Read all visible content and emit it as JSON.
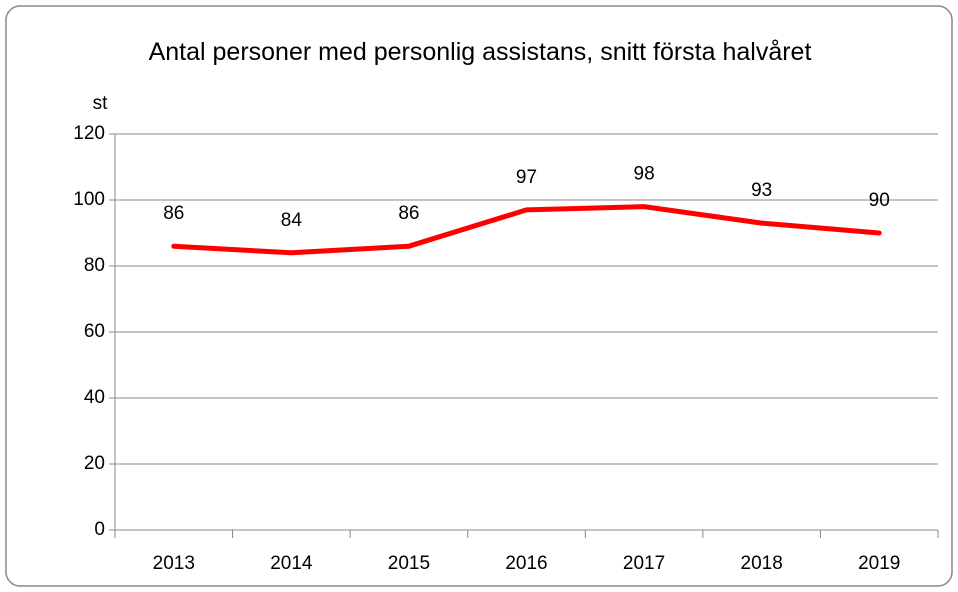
{
  "chart_data": {
    "type": "line",
    "title": "Antal personer med personlig assistans, snitt första halvåret",
    "y_label": "st",
    "categories": [
      "2013",
      "2014",
      "2015",
      "2016",
      "2017",
      "2018",
      "2019"
    ],
    "series": [
      {
        "name": "Antal personer",
        "color": "#ff0000",
        "values": [
          86,
          84,
          86,
          97,
          98,
          93,
          90
        ]
      }
    ],
    "ylim": [
      0,
      120
    ],
    "yticks": [
      0,
      20,
      40,
      60,
      80,
      100,
      120
    ],
    "grid": true
  }
}
